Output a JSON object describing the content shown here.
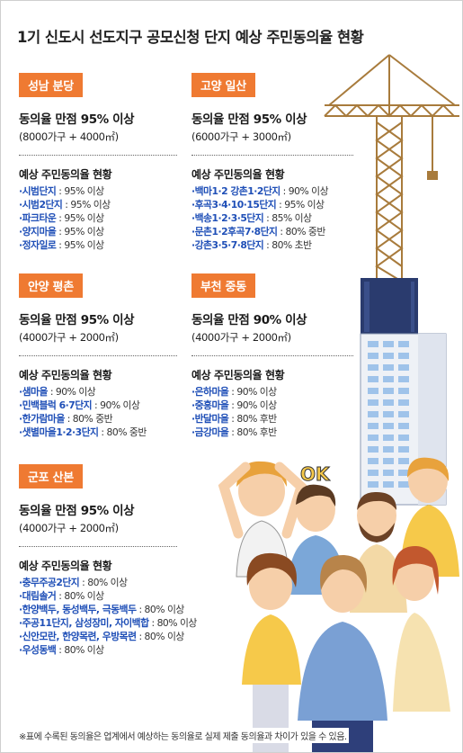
{
  "title": "1기 신도시 선도지구 공모신청 단지 예상 주민동의율 현황",
  "list_heading": "예상 주민동의율 현황",
  "sections": [
    {
      "region": "성남 분당",
      "headline": "동의율 만점 95% 이상",
      "condition": "(8000가구 + 4000㎡)",
      "items": [
        {
          "name": "시범단지",
          "value": " : 95% 이상"
        },
        {
          "name": "시범2단지",
          "value": " : 95% 이상"
        },
        {
          "name": "파크타운",
          "value": " : 95% 이상"
        },
        {
          "name": "양지마을",
          "value": " : 95% 이상"
        },
        {
          "name": "정자일로",
          "value": " : 95% 이상"
        }
      ]
    },
    {
      "region": "고양 일산",
      "headline": "동의율 만점 95% 이상",
      "condition": "(6000가구 + 3000㎡)",
      "items": [
        {
          "name": "백마1·2 강촌1·2단지",
          "value": " : 90% 이상"
        },
        {
          "name": "후곡3·4·10·15단지",
          "value": " : 95% 이상"
        },
        {
          "name": "백송1·2·3·5단지",
          "value": " : 85% 이상"
        },
        {
          "name": "문촌1·2후곡7·8단지",
          "value": " : 80% 중반"
        },
        {
          "name": "강촌3·5·7·8단지",
          "value": " : 80% 초반"
        }
      ]
    },
    {
      "region": "안양 평촌",
      "headline": "동의율 만점 95% 이상",
      "condition": "(4000가구 + 2000㎡)",
      "items": [
        {
          "name": "샘마을",
          "value": " : 90% 이상"
        },
        {
          "name": "민백블럭 6·7단지",
          "value": " : 90% 이상"
        },
        {
          "name": "한가람마을",
          "value": " : 80% 중반"
        },
        {
          "name": "샛별마을1·2·3단지",
          "value": " : 80% 중반"
        }
      ]
    },
    {
      "region": "부천 중동",
      "headline": "동의율 만점 90% 이상",
      "condition": "(4000가구 + 2000㎡)",
      "items": [
        {
          "name": "은하마을",
          "value": " : 90% 이상"
        },
        {
          "name": "중흥마을",
          "value": " : 90% 이상"
        },
        {
          "name": "반달마을",
          "value": " : 80% 후반"
        },
        {
          "name": "금강마을",
          "value": " : 80% 후반"
        }
      ]
    },
    {
      "region": "군포 산본",
      "headline": "동의율 만점 95% 이상",
      "condition": "(4000가구 + 2000㎡)",
      "items": [
        {
          "name": "충무주공2단지",
          "value": " : 80% 이상"
        },
        {
          "name": "대림솔거",
          "value": " : 80% 이상"
        },
        {
          "name": "한양백두, 동성백두, 극동백두",
          "value": " : 80% 이상"
        },
        {
          "name": "주공11단지, 삼성장미, 자이백합",
          "value": " : 80% 이상"
        },
        {
          "name": "신안모란, 한양목련, 우방목련",
          "value": " : 80% 이상"
        },
        {
          "name": "우성동백",
          "value": " : 80% 이상"
        }
      ]
    }
  ],
  "illustration": {
    "ok_text": "OK"
  },
  "footnote": "※표에 수록된 동의율은 업계에서 예상하는 동의율로 실제 제출 동의율과 차이가 있을 수 있음.",
  "colors": {
    "badge": "#ef7a32",
    "item_name": "#1f4fb7",
    "crane": "#a87b3c",
    "building": "#2a3b6e"
  }
}
